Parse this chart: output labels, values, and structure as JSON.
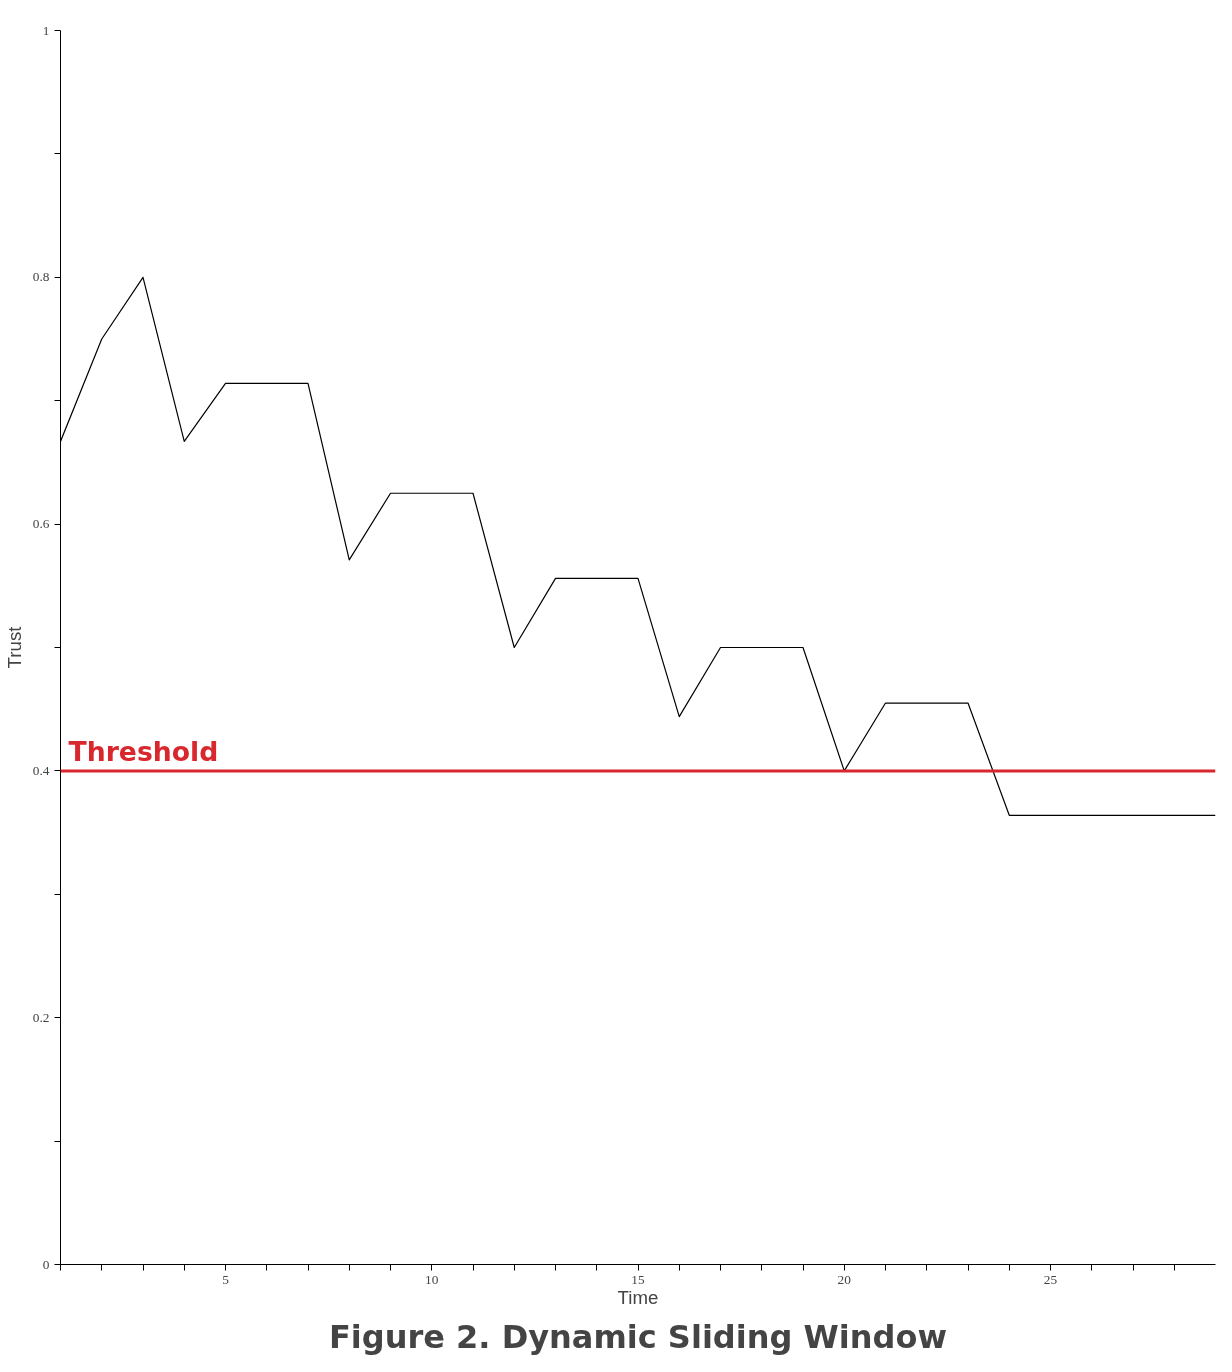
{
  "chart_data": {
    "type": "line",
    "title": "Figure 2. Dynamic Sliding Window",
    "xlabel": "Time",
    "ylabel": "Trust",
    "x": [
      1,
      2,
      3,
      4,
      5,
      6,
      7,
      8,
      9,
      10,
      11,
      12,
      13,
      14,
      15,
      16,
      17,
      18,
      19,
      20,
      21,
      22,
      23,
      24,
      25,
      26,
      27,
      28,
      29
    ],
    "series": [
      {
        "color": "#000000",
        "values": [
          0.667,
          0.75,
          0.8,
          0.667,
          0.714,
          0.714,
          0.714,
          0.571,
          0.625,
          0.625,
          0.625,
          0.5,
          0.556,
          0.556,
          0.556,
          0.444,
          0.5,
          0.5,
          0.5,
          0.4,
          0.455,
          0.455,
          0.455,
          0.364,
          0.364,
          0.364,
          0.364,
          0.364,
          0.364
        ]
      }
    ],
    "xlim": [
      1,
      29
    ],
    "ylim": [
      0,
      1
    ],
    "xticks": [
      {
        "value": 1,
        "label": null
      },
      {
        "value": 2,
        "label": null
      },
      {
        "value": 3,
        "label": null
      },
      {
        "value": 4,
        "label": null
      },
      5,
      {
        "value": 6,
        "label": null
      },
      {
        "value": 7,
        "label": null
      },
      {
        "value": 8,
        "label": null
      },
      {
        "value": 9,
        "label": null
      },
      10,
      {
        "value": 11,
        "label": null
      },
      {
        "value": 12,
        "label": null
      },
      {
        "value": 13,
        "label": null
      },
      {
        "value": 14,
        "label": null
      },
      15,
      {
        "value": 16,
        "label": null
      },
      {
        "value": 17,
        "label": null
      },
      {
        "value": 18,
        "label": null
      },
      {
        "value": 19,
        "label": null
      },
      20,
      {
        "value": 21,
        "label": null
      },
      {
        "value": 22,
        "label": null
      },
      {
        "value": 23,
        "label": null
      },
      {
        "value": 24,
        "label": null
      },
      25,
      {
        "value": 26,
        "label": null
      },
      {
        "value": 27,
        "label": null
      },
      {
        "value": 28,
        "label": null
      }
    ],
    "yticks": [
      0,
      {
        "value": 0.1,
        "label": null
      },
      0.2,
      {
        "value": 0.3,
        "label": null
      },
      0.4,
      {
        "value": 0.5,
        "label": null
      },
      0.6,
      {
        "value": 0.7,
        "label": null
      },
      0.8,
      {
        "value": 0.9,
        "label": null
      },
      1
    ],
    "ref_lines": [
      {
        "axis": "y",
        "value": 0.4,
        "label": "Threshold",
        "color": "#d9272e"
      }
    ],
    "grid": false,
    "marker": "none",
    "line_style": "solid"
  }
}
